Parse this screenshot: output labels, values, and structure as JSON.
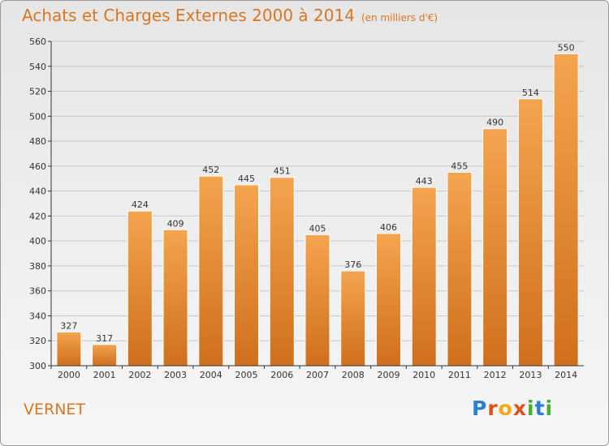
{
  "header": {
    "title": "Achats et Charges Externes 2000 à 2014",
    "subtitle": "(en milliers d'€)"
  },
  "footer": {
    "place": "VERNET",
    "logo_text": "Proxiti"
  },
  "colors": {
    "title": "#d9761f",
    "bar_light": "#f4a44f",
    "bar_dark": "#d06f1c",
    "grid": "#c8c8c8",
    "axis": "#333333"
  },
  "chart_data": {
    "type": "bar",
    "categories": [
      "2000",
      "2001",
      "2002",
      "2003",
      "2004",
      "2005",
      "2006",
      "2007",
      "2008",
      "2009",
      "2010",
      "2011",
      "2012",
      "2013",
      "2014"
    ],
    "values": [
      327,
      317,
      424,
      409,
      452,
      445,
      451,
      405,
      376,
      406,
      443,
      455,
      490,
      514,
      550
    ],
    "title": "Achats et Charges Externes 2000 à 2014",
    "ylim": [
      300,
      560
    ],
    "yticks": [
      300,
      320,
      340,
      360,
      380,
      400,
      420,
      440,
      460,
      480,
      500,
      520,
      540,
      560
    ],
    "grid": true,
    "data_labels": true
  }
}
